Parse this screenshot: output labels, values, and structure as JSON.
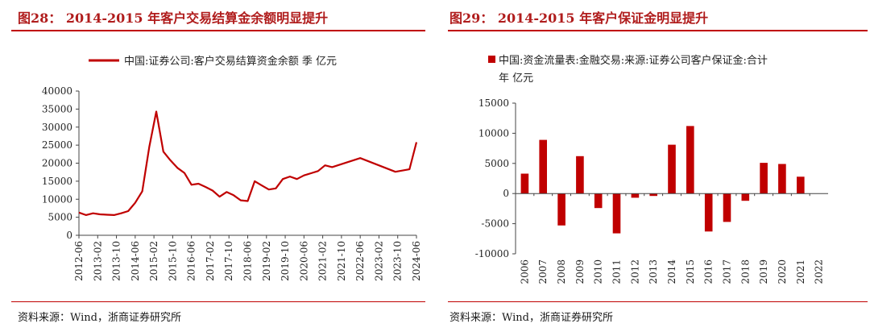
{
  "left": {
    "title": "图28： 2014-2015 年客户交易结算金余额明显提升",
    "source": "资料来源：Wind，浙商证券研究所",
    "chart_data": {
      "type": "line",
      "series": [
        {
          "name": "中国:证券公司:客户交易结算资金余额 季 亿元",
          "values": [
            6300,
            5600,
            6100,
            5800,
            5700,
            5600,
            6100,
            6700,
            9000,
            12200,
            24500,
            34300,
            23200,
            20800,
            18700,
            17300,
            14000,
            14300,
            13400,
            12400,
            10700,
            12000,
            11100,
            9700,
            9500,
            15000,
            13800,
            12700,
            13000,
            15600,
            16300,
            15600,
            16600,
            17200,
            17800,
            19400,
            18900,
            21400,
            17600,
            18300,
            25800
          ]
        }
      ],
      "x": [
        "2012-06",
        "2012-09",
        "2012-12",
        "2013-03",
        "2013-06",
        "2013-09",
        "2013-12",
        "2014-03",
        "2014-06",
        "2014-09",
        "2014-12",
        "2015-03",
        "2015-06",
        "2015-09",
        "2015-12",
        "2016-03",
        "2016-06",
        "2016-09",
        "2016-12",
        "2017-03",
        "2017-06",
        "2017-09",
        "2017-12",
        "2018-03",
        "2018-06",
        "2018-09",
        "2018-12",
        "2019-03",
        "2019-06",
        "2019-09",
        "2019-12",
        "2020-03",
        "2020-06",
        "2020-09",
        "2020-12",
        "2021-03",
        "2021-06",
        "2022-06",
        "2023-09",
        "2024-03",
        "2024-06"
      ],
      "x_ticks": [
        "2012-06",
        "2013-02",
        "2013-10",
        "2014-06",
        "2015-02",
        "2015-10",
        "2016-06",
        "2017-02",
        "2017-10",
        "2018-06",
        "2019-02",
        "2019-10",
        "2020-06",
        "2021-02",
        "2021-10",
        "2022-06",
        "2023-02",
        "2023-10",
        "2024-06"
      ],
      "y_ticks": [
        0,
        5000,
        10000,
        15000,
        20000,
        25000,
        30000,
        35000,
        40000
      ],
      "ylim": [
        0,
        40000
      ],
      "legend_position": "top",
      "color": "#c00000"
    }
  },
  "right": {
    "title": "图29： 2014-2015 年客户保证金明显提升",
    "source": "资料来源：Wind，浙商证券研究所",
    "chart_data": {
      "type": "bar",
      "categories": [
        "2006",
        "2007",
        "2008",
        "2009",
        "2010",
        "2011",
        "2012",
        "2013",
        "2014",
        "2015",
        "2016",
        "2017",
        "2018",
        "2019",
        "2020",
        "2021",
        "2022"
      ],
      "series": [
        {
          "name": "中国:资金流量表:金融交易:来源:证券公司客户保证金:合计 年 亿元",
          "legend_lines": [
            "中国:资金流量表:金融交易:来源:证券公司客户保证金:合计",
            "年 亿元"
          ],
          "values": [
            3300,
            8900,
            -5300,
            6200,
            -2400,
            -6600,
            -700,
            -400,
            8100,
            11200,
            -6300,
            -4700,
            -1200,
            5100,
            4900,
            2800,
            null
          ]
        }
      ],
      "y_ticks": [
        -10000,
        -5000,
        0,
        5000,
        10000,
        15000
      ],
      "ylim": [
        -10000,
        15000
      ],
      "legend_position": "top",
      "color": "#c00000"
    }
  }
}
